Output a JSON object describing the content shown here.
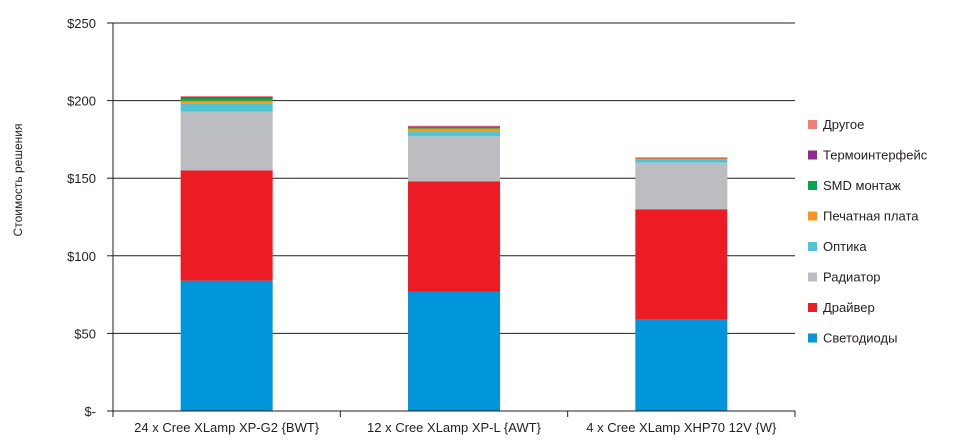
{
  "chart_data": {
    "type": "bar",
    "stacked": true,
    "title": "",
    "xlabel": "",
    "ylabel": "Стоимость решения",
    "ylim": [
      0,
      250
    ],
    "yticks": [
      0,
      50,
      100,
      150,
      200,
      250
    ],
    "ytick_labels": [
      "$-",
      "$50",
      "$100",
      "$150",
      "$200",
      "$250"
    ],
    "grid": true,
    "legend_position": "right",
    "categories": [
      "24 x Cree XLamp XP-G2 {BWT}",
      "12 x Cree XLamp XP-L {AWT}",
      "4 x Cree XLamp XHP70 12V {W}"
    ],
    "series": [
      {
        "name": "Светодиоды",
        "color": "#0096d9",
        "values": [
          84,
          77,
          59
        ]
      },
      {
        "name": "Драйвер",
        "color": "#ed1c24",
        "values": [
          71,
          71,
          71
        ]
      },
      {
        "name": "Радиатор",
        "color": "#bcbdc0",
        "values": [
          38,
          29,
          30
        ]
      },
      {
        "name": "Оптика",
        "color": "#4fc5d3",
        "values": [
          5,
          3,
          2
        ]
      },
      {
        "name": "Печатная плата",
        "color": "#f7941d",
        "values": [
          2,
          2,
          1
        ]
      },
      {
        "name": "SMD монтаж",
        "color": "#00a651",
        "values": [
          2,
          1,
          0
        ]
      },
      {
        "name": "Термоинтерфейс",
        "color": "#92278f",
        "values": [
          0.6,
          0.5,
          0.3
        ]
      },
      {
        "name": "Другое",
        "color": "#f37e79",
        "values": [
          0.3,
          0.3,
          0.2
        ]
      }
    ]
  }
}
